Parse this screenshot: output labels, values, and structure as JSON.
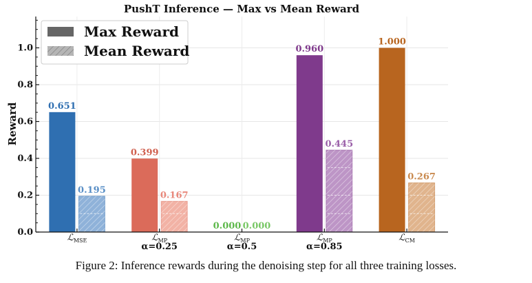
{
  "caption": "Figure 2: Inference rewards during the denoising step for all three training losses.",
  "chart_data": {
    "type": "bar",
    "title": "PushT Inference — Max vs Mean Reward",
    "ylabel": "Reward",
    "xlabel": "",
    "ylim": [
      0,
      1.17
    ],
    "yticks": [
      0.0,
      0.2,
      0.4,
      0.6,
      0.8,
      1.0
    ],
    "ytick_labels": [
      "0.0",
      "0.2",
      "0.4",
      "0.6",
      "0.8",
      "1.0"
    ],
    "grid": true,
    "legend_position": "top-left",
    "categories": [
      {
        "main": "ℒ",
        "sub": "MSE",
        "alpha": ""
      },
      {
        "main": "ℒ",
        "sub": "MP",
        "alpha": "α=0.25"
      },
      {
        "main": "ℒ",
        "sub": "MP",
        "alpha": "α=0.5"
      },
      {
        "main": "ℒ",
        "sub": "MP",
        "alpha": "α=0.85"
      },
      {
        "main": "ℒ",
        "sub": "CM",
        "alpha": ""
      }
    ],
    "series": [
      {
        "name": "Max Reward",
        "values": [
          0.651,
          0.399,
          0.0,
          0.96,
          1.0
        ],
        "labels": [
          "0.651",
          "0.399",
          "0.000",
          "0.960",
          "1.000"
        ]
      },
      {
        "name": "Mean Reward",
        "values": [
          0.195,
          0.167,
          0.0,
          0.445,
          0.267
        ],
        "labels": [
          "0.195",
          "0.167",
          "0.000",
          "0.445",
          "0.267"
        ]
      }
    ],
    "colors": {
      "max": [
        "#2f6fb1",
        "#db6b5a",
        "#5db84a",
        "#7f3a8c",
        "#b8651f"
      ],
      "mean": [
        "#8fb2d9",
        "#f2b2a5",
        "#a9dc9c",
        "#bd95c6",
        "#e0b48d"
      ],
      "label_max": [
        "#2f6fb1",
        "#d0604f",
        "#5db84a",
        "#7f3a8c",
        "#b8651f"
      ],
      "label_mean": [
        "#5a8fc6",
        "#e8877a",
        "#78c765",
        "#9a5fa8",
        "#c98a4f"
      ],
      "legend_max": "#666666",
      "legend_mean": "#b5b5b5"
    }
  }
}
